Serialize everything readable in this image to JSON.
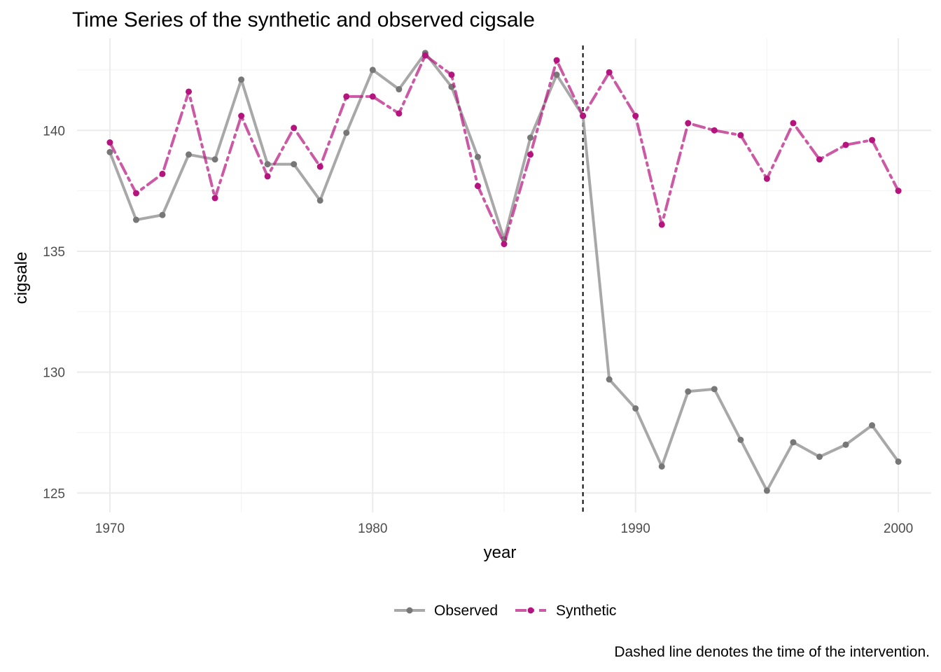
{
  "chart_data": {
    "type": "line",
    "title": "Time Series of the synthetic and observed cigsale",
    "xlabel": "year",
    "ylabel": "cigsale",
    "caption": "Dashed line denotes the time of the intervention.",
    "x": [
      1970,
      1971,
      1972,
      1973,
      1974,
      1975,
      1976,
      1977,
      1978,
      1979,
      1980,
      1981,
      1982,
      1983,
      1984,
      1985,
      1986,
      1987,
      1988,
      1989,
      1990,
      1991,
      1992,
      1993,
      1994,
      1995,
      1996,
      1997,
      1998,
      1999,
      2000
    ],
    "series": [
      {
        "name": "Observed",
        "color": "#999999",
        "linestyle": "solid",
        "values": [
          139.1,
          136.3,
          136.5,
          139.0,
          138.8,
          142.1,
          138.6,
          138.6,
          137.1,
          139.9,
          142.5,
          141.7,
          143.2,
          141.8,
          138.9,
          135.5,
          139.7,
          142.3,
          140.6,
          129.7,
          128.5,
          126.1,
          129.2,
          129.3,
          127.2,
          125.1,
          127.1,
          126.5,
          127.0,
          127.8,
          126.3
        ]
      },
      {
        "name": "Synthetic",
        "color": "#B5137E",
        "linestyle": "dashed",
        "values": [
          139.5,
          137.4,
          138.2,
          141.6,
          137.2,
          140.6,
          138.1,
          140.1,
          138.5,
          141.4,
          141.4,
          140.7,
          143.1,
          142.3,
          137.7,
          135.3,
          139.0,
          142.9,
          140.6,
          142.4,
          140.6,
          136.1,
          140.3,
          140.0,
          139.8,
          138.0,
          140.3,
          138.8,
          139.4,
          139.6,
          137.5
        ]
      }
    ],
    "intervention_year": 1988,
    "xlim": [
      1968.75,
      2001.25
    ],
    "ylim": [
      124.2,
      143.8
    ],
    "xticks": [
      1970,
      1980,
      1990,
      2000
    ],
    "yticks": [
      125,
      130,
      135,
      140
    ],
    "grid": true,
    "legend_position": "bottom"
  }
}
